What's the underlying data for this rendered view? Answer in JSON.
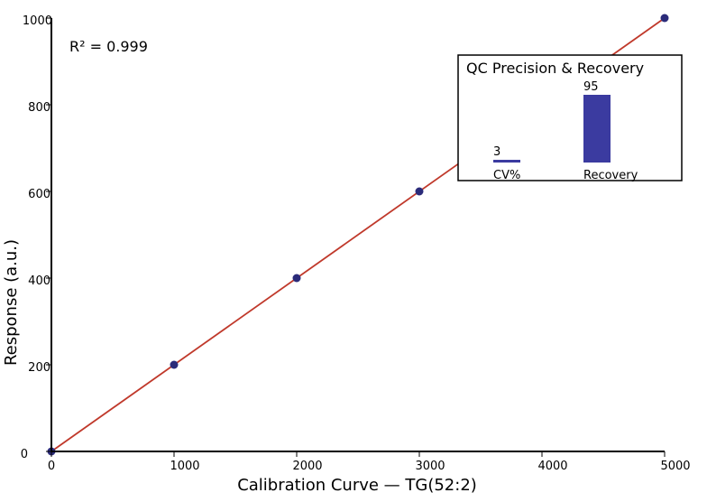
{
  "chart_data": [
    {
      "type": "scatter",
      "xlabel": "Calibration Curve — TG(52:2)",
      "ylabel": "Response (a.u.)",
      "xlim": [
        0,
        5000
      ],
      "ylim": [
        0,
        1000
      ],
      "xticks": [
        "0",
        "1000",
        "2000",
        "3000",
        "4000",
        "5000"
      ],
      "yticks": [
        "0",
        "200",
        "400",
        "600",
        "800",
        "1000"
      ],
      "grid": false,
      "annotation": "R² = 0.999",
      "points": [
        {
          "x": 0,
          "y": 0
        },
        {
          "x": 1000,
          "y": 200
        },
        {
          "x": 2000,
          "y": 400
        },
        {
          "x": 3000,
          "y": 600
        },
        {
          "x": 5000,
          "y": 1000
        }
      ],
      "fit_line": {
        "x": [
          0,
          5000
        ],
        "y": [
          0,
          1000
        ]
      },
      "colors": {
        "points": "#2b2b7a",
        "fit_line": "#c0392b"
      }
    },
    {
      "type": "bar",
      "title": "QC Precision & Recovery",
      "categories": [
        "CV%",
        "Recovery"
      ],
      "values": [
        3,
        95
      ],
      "data_labels": [
        "3",
        "95"
      ],
      "ylim": [
        0,
        100
      ],
      "color": "#3b3ba0",
      "placement": "top-right inset"
    }
  ]
}
